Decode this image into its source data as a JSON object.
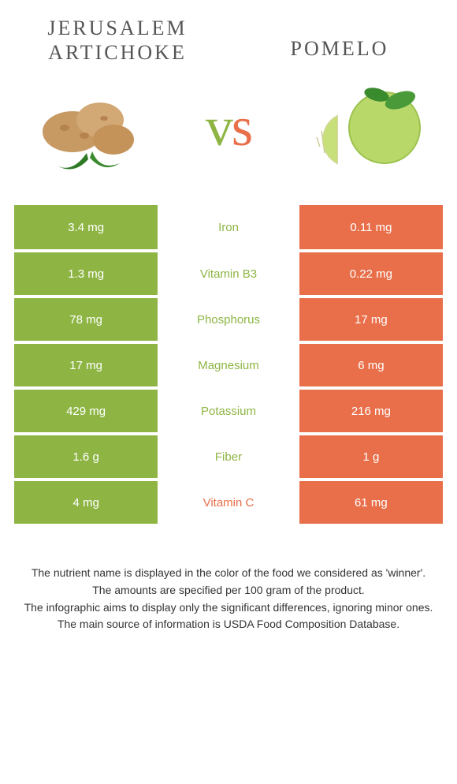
{
  "colors": {
    "left": "#8eb544",
    "right": "#e86f4a",
    "mid_bg": "#ffffff",
    "text_dark": "#333333"
  },
  "header": {
    "left_title": "Jerusalem artichoke",
    "right_title": "Pomelo",
    "vs_v": "v",
    "vs_s": "s"
  },
  "table": {
    "rows": [
      {
        "label": "Iron",
        "left": "3.4 mg",
        "right": "0.11 mg",
        "winner": "left"
      },
      {
        "label": "Vitamin B3",
        "left": "1.3 mg",
        "right": "0.22 mg",
        "winner": "left"
      },
      {
        "label": "Phosphorus",
        "left": "78 mg",
        "right": "17 mg",
        "winner": "left"
      },
      {
        "label": "Magnesium",
        "left": "17 mg",
        "right": "6 mg",
        "winner": "left"
      },
      {
        "label": "Potassium",
        "left": "429 mg",
        "right": "216 mg",
        "winner": "left"
      },
      {
        "label": "Fiber",
        "left": "1.6 g",
        "right": "1 g",
        "winner": "left"
      },
      {
        "label": "Vitamin C",
        "left": "4 mg",
        "right": "61 mg",
        "winner": "right"
      }
    ]
  },
  "footer": {
    "lines": [
      "The nutrient name is displayed in the color of the food we considered as 'winner'.",
      "The amounts are specified per 100 gram of the product.",
      "The infographic aims to display only the significant differences, ignoring minor ones.",
      "The main source of information is USDA Food Composition Database."
    ]
  }
}
